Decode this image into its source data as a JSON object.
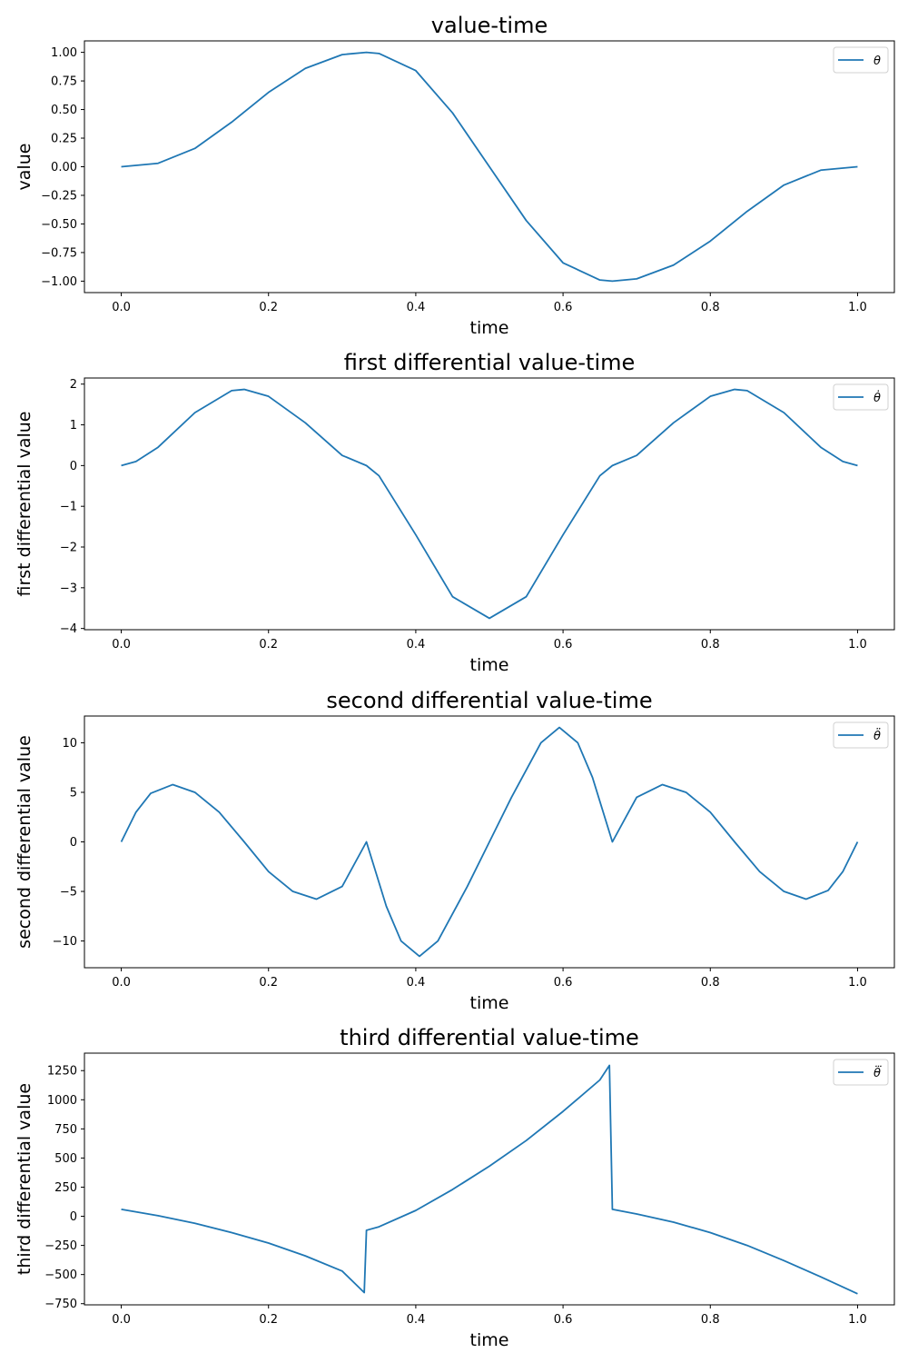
{
  "chart_data": [
    {
      "type": "line",
      "title": "value-time",
      "xlabel": "time",
      "ylabel": "value",
      "xlim": [
        -0.05,
        1.05
      ],
      "ylim": [
        -1.1,
        1.1
      ],
      "xticks": [
        0.0,
        0.2,
        0.4,
        0.6,
        0.8,
        1.0
      ],
      "xtick_labels": [
        "0.0",
        "0.2",
        "0.4",
        "0.6",
        "0.8",
        "1.0"
      ],
      "yticks": [
        1.0,
        0.75,
        0.5,
        0.25,
        0.0,
        -0.25,
        -0.5,
        -0.75,
        -1.0
      ],
      "ytick_labels": [
        "1.00",
        "0.75",
        "0.50",
        "0.25",
        "0.00",
        "−0.25",
        "−0.50",
        "−0.75",
        "−1.00"
      ],
      "legend_position": "top-right",
      "color": "#1f77b4",
      "series": [
        {
          "name": "θ",
          "x": [
            0.0,
            0.05,
            0.1,
            0.15,
            0.2,
            0.25,
            0.3,
            0.333,
            0.35,
            0.4,
            0.45,
            0.5,
            0.55,
            0.6,
            0.65,
            0.667,
            0.7,
            0.75,
            0.8,
            0.85,
            0.9,
            0.95,
            1.0
          ],
          "y": [
            0.0,
            0.03,
            0.16,
            0.39,
            0.65,
            0.86,
            0.98,
            1.0,
            0.99,
            0.84,
            0.47,
            0.0,
            -0.47,
            -0.84,
            -0.99,
            -1.0,
            -0.98,
            -0.86,
            -0.65,
            -0.39,
            -0.16,
            -0.03,
            0.0
          ]
        }
      ]
    },
    {
      "type": "line",
      "title": "first differential value-time",
      "xlabel": "time",
      "ylabel": "first differential value",
      "xlim": [
        -0.05,
        1.05
      ],
      "ylim": [
        -4.03,
        2.15
      ],
      "xticks": [
        0.0,
        0.2,
        0.4,
        0.6,
        0.8,
        1.0
      ],
      "xtick_labels": [
        "0.0",
        "0.2",
        "0.4",
        "0.6",
        "0.8",
        "1.0"
      ],
      "yticks": [
        2,
        1,
        0,
        -1,
        -2,
        -3,
        -4
      ],
      "ytick_labels": [
        "2",
        "1",
        "0",
        "−1",
        "−2",
        "−3",
        "−4"
      ],
      "legend_position": "top-right",
      "color": "#1f77b4",
      "series": [
        {
          "name": "θ̇",
          "x": [
            0.0,
            0.02,
            0.05,
            0.1,
            0.15,
            0.167,
            0.2,
            0.25,
            0.3,
            0.333,
            0.35,
            0.4,
            0.45,
            0.5,
            0.55,
            0.6,
            0.65,
            0.667,
            0.7,
            0.75,
            0.8,
            0.833,
            0.85,
            0.9,
            0.95,
            0.98,
            1.0
          ],
          "y": [
            0.0,
            0.1,
            0.45,
            1.3,
            1.84,
            1.87,
            1.7,
            1.05,
            0.25,
            0.0,
            -0.25,
            -1.7,
            -3.22,
            -3.75,
            -3.22,
            -1.7,
            -0.25,
            0.0,
            0.25,
            1.05,
            1.7,
            1.87,
            1.84,
            1.3,
            0.45,
            0.1,
            0.0
          ]
        }
      ]
    },
    {
      "type": "line",
      "title": "second differential value-time",
      "xlabel": "time",
      "ylabel": "second differential value",
      "xlim": [
        -0.05,
        1.05
      ],
      "ylim": [
        -12.7,
        12.7
      ],
      "xticks": [
        0.0,
        0.2,
        0.4,
        0.6,
        0.8,
        1.0
      ],
      "xtick_labels": [
        "0.0",
        "0.2",
        "0.4",
        "0.6",
        "0.8",
        "1.0"
      ],
      "yticks": [
        10,
        5,
        0,
        -5,
        -10
      ],
      "ytick_labels": [
        "10",
        "5",
        "0",
        "−5",
        "−10"
      ],
      "legend_position": "top-right",
      "color": "#1f77b4",
      "series": [
        {
          "name": "θ̈",
          "x": [
            0.0,
            0.02,
            0.04,
            0.07,
            0.1,
            0.133,
            0.167,
            0.2,
            0.233,
            0.265,
            0.3,
            0.333,
            0.36,
            0.38,
            0.405,
            0.43,
            0.47,
            0.5,
            0.53,
            0.57,
            0.595,
            0.62,
            0.64,
            0.667,
            0.7,
            0.735,
            0.767,
            0.8,
            0.833,
            0.867,
            0.9,
            0.93,
            0.96,
            0.98,
            1.0
          ],
          "y": [
            0.0,
            3.0,
            4.9,
            5.78,
            5.0,
            3.0,
            0.0,
            -3.0,
            -5.0,
            -5.78,
            -4.5,
            0.0,
            -6.5,
            -10.0,
            -11.55,
            -10.0,
            -4.5,
            0.0,
            4.5,
            10.0,
            11.55,
            10.0,
            6.5,
            0.0,
            4.5,
            5.78,
            5.0,
            3.0,
            0.0,
            -3.0,
            -5.0,
            -5.78,
            -4.9,
            -3.0,
            0.0
          ]
        }
      ]
    },
    {
      "type": "line",
      "title": "third differential value-time",
      "xlabel": "time",
      "ylabel": "third differential value",
      "xlim": [
        -0.05,
        1.05
      ],
      "ylim": [
        -760,
        1400
      ],
      "xticks": [
        0.0,
        0.2,
        0.4,
        0.6,
        0.8,
        1.0
      ],
      "xtick_labels": [
        "0.0",
        "0.2",
        "0.4",
        "0.6",
        "0.8",
        "1.0"
      ],
      "yticks": [
        1250,
        1000,
        750,
        500,
        250,
        0,
        -250,
        -500,
        -750
      ],
      "ytick_labels": [
        "1250",
        "1000",
        "750",
        "500",
        "250",
        "0",
        "−250",
        "−500",
        "−750"
      ],
      "legend_position": "top-right",
      "color": "#1f77b4",
      "series": [
        {
          "name": "θ⃛",
          "x": [
            0.0,
            0.05,
            0.1,
            0.15,
            0.2,
            0.25,
            0.3,
            0.33,
            0.333,
            0.35,
            0.4,
            0.45,
            0.5,
            0.55,
            0.6,
            0.65,
            0.663,
            0.667,
            0.7,
            0.75,
            0.8,
            0.85,
            0.9,
            0.95,
            1.0
          ],
          "y": [
            60,
            5,
            -60,
            -140,
            -230,
            -340,
            -470,
            -655,
            -120,
            -90,
            50,
            230,
            430,
            650,
            900,
            1170,
            1295,
            60,
            20,
            -50,
            -140,
            -250,
            -380,
            -520,
            -665
          ]
        }
      ]
    }
  ]
}
